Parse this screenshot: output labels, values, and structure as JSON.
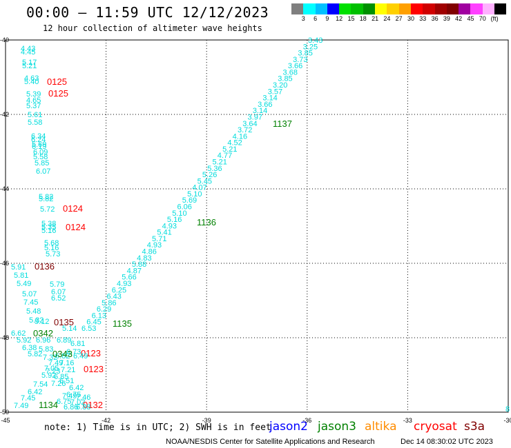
{
  "title": "00:00 – 11:59 UTC 12/12/2023",
  "subtitle": "12 hour collection of altimeter wave heights",
  "legend": {
    "labels": [
      "3",
      "6",
      "9",
      "12",
      "15",
      "18",
      "21",
      "24",
      "27",
      "30",
      "33",
      "36",
      "39",
      "42",
      "45",
      "70",
      "(ft)"
    ],
    "colors": [
      "#7f7f7f",
      "#00ffff",
      "#00c0ff",
      "#0000ff",
      "#00e000",
      "#00c000",
      "#009000",
      "#ffff00",
      "#ffd000",
      "#ffa000",
      "#ff0000",
      "#d00000",
      "#a00000",
      "#800000",
      "#a000a0",
      "#ff40ff",
      "#ffb0ff",
      "#000000"
    ]
  },
  "axes": {
    "lon_ticks": [
      "-45",
      "-42",
      "-39",
      "-36",
      "-33",
      "-30"
    ],
    "lat_ticks": [
      "-40",
      "-42",
      "-44",
      "-46",
      "-48",
      "-50"
    ]
  },
  "note": "note:  1) Time is in UTC;  2) SWH is in feet",
  "satellites": [
    {
      "name": "jason2",
      "color": "#0000ff"
    },
    {
      "name": "jason3",
      "color": "#008000"
    },
    {
      "name": "altika",
      "color": "#ff8c00"
    },
    {
      "name": "cryosat",
      "color": "#ff0000"
    },
    {
      "name": "s3a",
      "color": "#800000"
    }
  ],
  "footer_left": "NOAA/NESDIS Center for Satellite Applications and Research",
  "footer_right": "Dec 14 08:30:02 UTC 2023",
  "swh_color": "#00dcdc",
  "track_diag": {
    "label_color": "#008000",
    "values": [
      "3.43",
      "3.25",
      "3.85",
      "3.73",
      "3.66",
      "3.68",
      "3.85",
      "3.20",
      "3.57",
      "3.14",
      "3.66",
      "3.14",
      "3.97",
      "3.64",
      "3.72",
      "4.16",
      "4.52",
      "5.21",
      "4.77",
      "5.21",
      "5.36",
      "5.26",
      "5.45",
      "4.07",
      "5.10",
      "5.69",
      "6.06",
      "5.10",
      "5.16",
      "4.93",
      "5.41",
      "5.71",
      "4.93",
      "4.86",
      "4.83",
      "5.88",
      "4.87",
      "5.66",
      "4.93",
      "6.25",
      "6.43",
      "5.86",
      "6.29",
      "6.13",
      "6.45",
      "6.53"
    ],
    "times": [
      "1137",
      "1136",
      "1135"
    ]
  },
  "track_left": {
    "label_color": "#ff0000",
    "values": [
      "4.43",
      "4.45",
      "5.17",
      "5.21",
      "4.63",
      "5.40",
      "5.39",
      "4.65",
      "5.37",
      "5.61",
      "5.58",
      "6.34",
      "6.24",
      "5.69",
      "6.19",
      "6.09",
      "5.58",
      "5.85",
      "6.07",
      "5.82",
      "5.82",
      "5.72",
      "5.38",
      "5.35",
      "5.16",
      "5.68",
      "5.16",
      "5.73",
      "5.91",
      "5.81",
      "5.49",
      "5.79",
      "5.07",
      "6.07",
      "6.52",
      "7.45",
      "5.48",
      "5.32",
      "5.12",
      "5.14"
    ],
    "times": [
      "0125",
      "0125",
      "0124",
      "0124",
      "0136",
      "0135",
      "0123",
      "0123",
      "0132"
    ]
  },
  "track_bottom": {
    "values": [
      "6.62",
      "5.92",
      "6.96",
      "6.89",
      "6.81",
      "6.38",
      "5.83",
      "5.82",
      "6.42",
      "7.49",
      "7.26",
      "7.05",
      "5.92",
      "7.54",
      "6.42",
      "7.45",
      "7.49",
      "6.75",
      "7.02",
      "6.86",
      "6.88"
    ],
    "times": [
      "0342",
      "0343",
      "1134"
    ]
  },
  "edge_value": "8"
}
